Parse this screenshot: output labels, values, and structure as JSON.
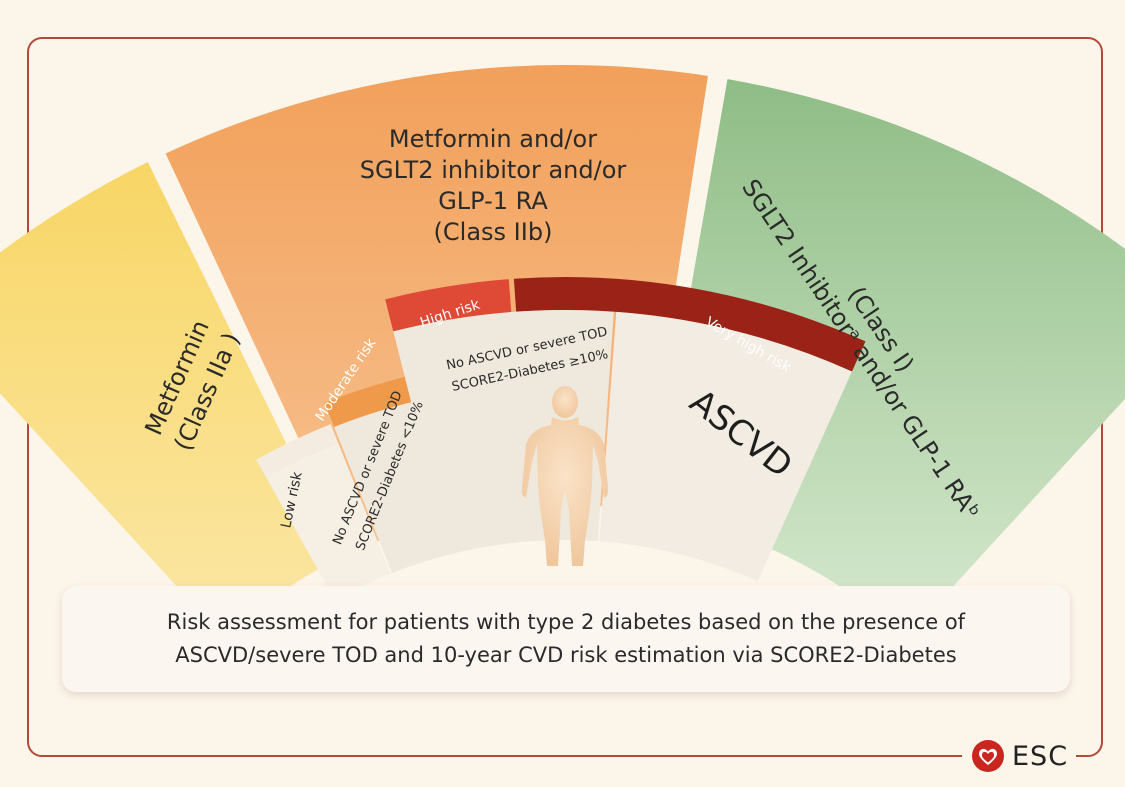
{
  "diagram": {
    "outer_arcs": [
      {
        "id": "metformin",
        "lines": [
          "Metformin",
          "(Class IIa )"
        ],
        "color": "#f6cd52"
      },
      {
        "id": "combo",
        "lines": [
          "Metformin and/or",
          "SGLT2 inhibitor and/or",
          "GLP-1 RA",
          "(Class IIb)"
        ],
        "color": "#f3a25a"
      },
      {
        "id": "sglt2",
        "lines": [
          "SGLT2 Inhibitorᵃ and/or GLP-1 RAᵇ",
          "(Class I)"
        ],
        "color": "#99c290"
      }
    ],
    "risk_bands": [
      {
        "id": "low",
        "label": "Low risk",
        "color": "#f4ece1"
      },
      {
        "id": "moderate",
        "label": "Moderate risk",
        "color": "#ef9a4a"
      },
      {
        "id": "high",
        "label": "High risk",
        "color": "#de4a36"
      },
      {
        "id": "very-high",
        "label": "Very high risk",
        "color": "#9b2217"
      }
    ],
    "inner_labels": {
      "low_moderate": [
        "No ASCVD or severe TOD",
        "SCORE2-Diabetes <10%"
      ],
      "high": [
        "No ASCVD or severe TOD",
        "SCORE2-Diabetes ≥10%"
      ],
      "ascvd": "ASCVD"
    },
    "figure_icon": "human-silhouette-icon"
  },
  "caption": {
    "line1": "Risk assessment for patients with type 2 diabetes based on the presence of",
    "line2": "ASCVD/severe TOD and 10-year CVD risk estimation via SCORE2-Diabetes"
  },
  "logo": {
    "text": "ESC",
    "icon": "heart-icon"
  }
}
